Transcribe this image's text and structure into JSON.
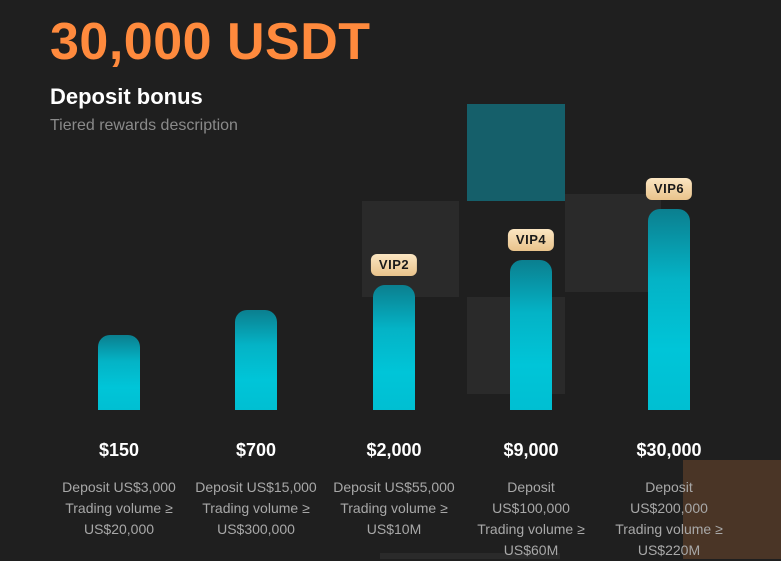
{
  "header": {
    "title": "30,000 USDT",
    "subtitle": "Deposit bonus",
    "description": "Tiered rewards description"
  },
  "colors": {
    "title": "#ff8a3d",
    "bar": "#00c5d8",
    "badge": "#f3d6a8",
    "background": "#1f1f1f"
  },
  "tiers": [
    {
      "amount": "$150",
      "badge": "",
      "deposit": "Deposit US$3,000",
      "volume_label": "Trading volume ≥",
      "volume": "US$20,000"
    },
    {
      "amount": "$700",
      "badge": "",
      "deposit": "Deposit US$15,000",
      "volume_label": "Trading volume ≥",
      "volume": "US$300,000"
    },
    {
      "amount": "$2,000",
      "badge": "VIP2",
      "deposit": "Deposit US$55,000",
      "volume_label": "Trading volume ≥",
      "volume": "US$10M"
    },
    {
      "amount": "$9,000",
      "badge": "VIP4",
      "deposit_label": "Deposit",
      "deposit": "US$100,000",
      "volume_label": "Trading volume ≥",
      "volume": "US$60M"
    },
    {
      "amount": "$30,000",
      "badge": "VIP6",
      "deposit_label": "Deposit",
      "deposit": "US$200,000",
      "volume_label": "Trading volume ≥",
      "volume": "US$220M"
    }
  ]
}
